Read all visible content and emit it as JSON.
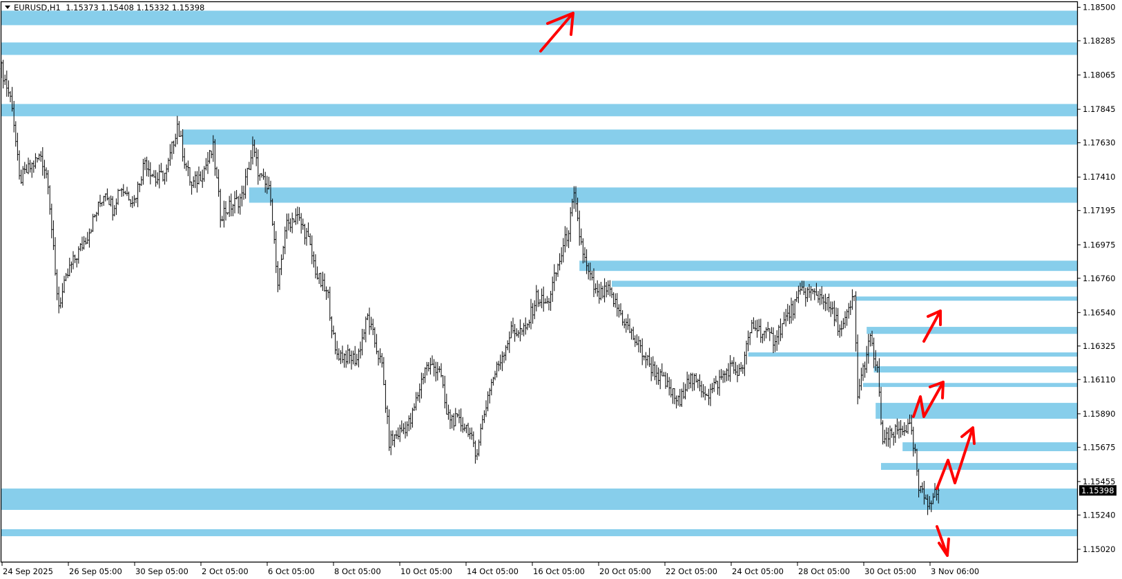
{
  "header": {
    "symbol": "EURUSD,H1",
    "ohlc": "1.15373 1.15408 1.15332 1.15398"
  },
  "chart_data": {
    "type": "ohlc-bar",
    "symbol": "EURUSD",
    "timeframe": "H1",
    "ylim": [
      1.1502,
      1.185
    ],
    "current_price": "1.15398",
    "price_ticks": [
      "1.18500",
      "1.18285",
      "1.18065",
      "1.17845",
      "1.17630",
      "1.17410",
      "1.17195",
      "1.16975",
      "1.16760",
      "1.16540",
      "1.16325",
      "1.16110",
      "1.15890",
      "1.15675",
      "1.15455",
      "1.15240",
      "1.15020"
    ],
    "date_ticks": [
      "24 Sep 2025",
      "26 Sep 05:00",
      "30 Sep 05:00",
      "2 Oct 05:00",
      "6 Oct 05:00",
      "8 Oct 05:00",
      "10 Oct 05:00",
      "14 Oct 05:00",
      "16 Oct 05:00",
      "20 Oct 05:00",
      "22 Oct 05:00",
      "24 Oct 05:00",
      "28 Oct 05:00",
      "30 Oct 05:00",
      "3 Nov 06:00"
    ],
    "price_path": [
      [
        2,
        1.1803
      ],
      [
        6,
        1.1788
      ],
      [
        10,
        1.1739
      ],
      [
        22,
        1.1755
      ],
      [
        26,
        1.1739
      ],
      [
        30,
        1.1677
      ],
      [
        32,
        1.1659
      ],
      [
        38,
        1.1682
      ],
      [
        48,
        1.1704
      ],
      [
        58,
        1.1733
      ],
      [
        62,
        1.1721
      ],
      [
        66,
        1.1735
      ],
      [
        74,
        1.1726
      ],
      [
        80,
        1.1752
      ],
      [
        86,
        1.1739
      ],
      [
        92,
        1.1744
      ],
      [
        98,
        1.1775
      ],
      [
        102,
        1.1752
      ],
      [
        106,
        1.1735
      ],
      [
        112,
        1.1744
      ],
      [
        118,
        1.1759
      ],
      [
        122,
        1.1717
      ],
      [
        134,
        1.1728
      ],
      [
        140,
        1.1759
      ],
      [
        144,
        1.1741
      ],
      [
        150,
        1.173
      ],
      [
        154,
        1.1668
      ],
      [
        158,
        1.1708
      ],
      [
        164,
        1.1717
      ],
      [
        170,
        1.1704
      ],
      [
        176,
        1.1677
      ],
      [
        182,
        1.1664
      ],
      [
        186,
        1.1628
      ],
      [
        198,
        1.1624
      ],
      [
        204,
        1.1651
      ],
      [
        212,
        1.1619
      ],
      [
        216,
        1.1571
      ],
      [
        228,
        1.1584
      ],
      [
        236,
        1.1619
      ],
      [
        244,
        1.1619
      ],
      [
        248,
        1.1588
      ],
      [
        260,
        1.158
      ],
      [
        264,
        1.1562
      ],
      [
        272,
        1.1606
      ],
      [
        284,
        1.1642
      ],
      [
        292,
        1.1642
      ],
      [
        298,
        1.1664
      ],
      [
        304,
        1.1659
      ],
      [
        316,
        1.1708
      ],
      [
        319,
        1.1728
      ],
      [
        322,
        1.1704
      ],
      [
        326,
        1.1682
      ],
      [
        332,
        1.1664
      ],
      [
        338,
        1.1668
      ],
      [
        350,
        1.1642
      ],
      [
        362,
        1.1619
      ],
      [
        368,
        1.1611
      ],
      [
        378,
        1.1595
      ],
      [
        382,
        1.1613
      ],
      [
        394,
        1.1602
      ],
      [
        406,
        1.1619
      ],
      [
        412,
        1.1615
      ],
      [
        418,
        1.1646
      ],
      [
        430,
        1.1637
      ],
      [
        442,
        1.1659
      ],
      [
        446,
        1.1668
      ],
      [
        458,
        1.1664
      ],
      [
        468,
        1.1642
      ],
      [
        475,
        1.1664
      ],
      [
        477,
        1.1602
      ],
      [
        484,
        1.1637
      ],
      [
        488,
        1.1615
      ],
      [
        491,
        1.1571
      ],
      [
        502,
        1.158
      ],
      [
        506,
        1.158
      ],
      [
        509,
        1.1562
      ],
      [
        511,
        1.154
      ],
      [
        516,
        1.1533
      ],
      [
        520,
        1.1537
      ],
      [
        522,
        1.15398
      ]
    ],
    "zones": [
      {
        "from_bar": 0,
        "top": 1.18478,
        "bottom": 1.18385
      },
      {
        "from_bar": 0,
        "top": 1.18274,
        "bottom": 1.18194
      },
      {
        "from_bar": 0,
        "top": 1.17879,
        "bottom": 1.178
      },
      {
        "from_bar": 101,
        "top": 1.17715,
        "bottom": 1.17618
      },
      {
        "from_bar": 138,
        "top": 1.17343,
        "bottom": 1.17245
      },
      {
        "from_bar": 322,
        "top": 1.16873,
        "bottom": 1.16807
      },
      {
        "from_bar": 340,
        "top": 1.16744,
        "bottom": 1.16705
      },
      {
        "from_bar": 476,
        "top": 1.16643,
        "bottom": 1.16616
      },
      {
        "from_bar": 482,
        "top": 1.16448,
        "bottom": 1.16403
      },
      {
        "from_bar": 416,
        "top": 1.16284,
        "bottom": 1.16257
      },
      {
        "from_bar": 486,
        "top": 1.16195,
        "bottom": 1.16155
      },
      {
        "from_bar": 480,
        "top": 1.16088,
        "bottom": 1.16062
      },
      {
        "from_bar": 487,
        "top": 1.1596,
        "bottom": 1.15858
      },
      {
        "from_bar": 502,
        "top": 1.15707,
        "bottom": 1.1565
      },
      {
        "from_bar": 490,
        "top": 1.15574,
        "bottom": 1.1553
      },
      {
        "from_bar": 0,
        "top": 1.1541,
        "bottom": 1.15273
      },
      {
        "from_bar": 0,
        "top": 1.15149,
        "bottom": 1.15104
      }
    ],
    "colors": {
      "zone": "#87CEEB",
      "bars": "#000000",
      "arrows": "#FF0000",
      "price_label_bg": "#000000",
      "price_label_text": "#FFFFFF"
    }
  }
}
